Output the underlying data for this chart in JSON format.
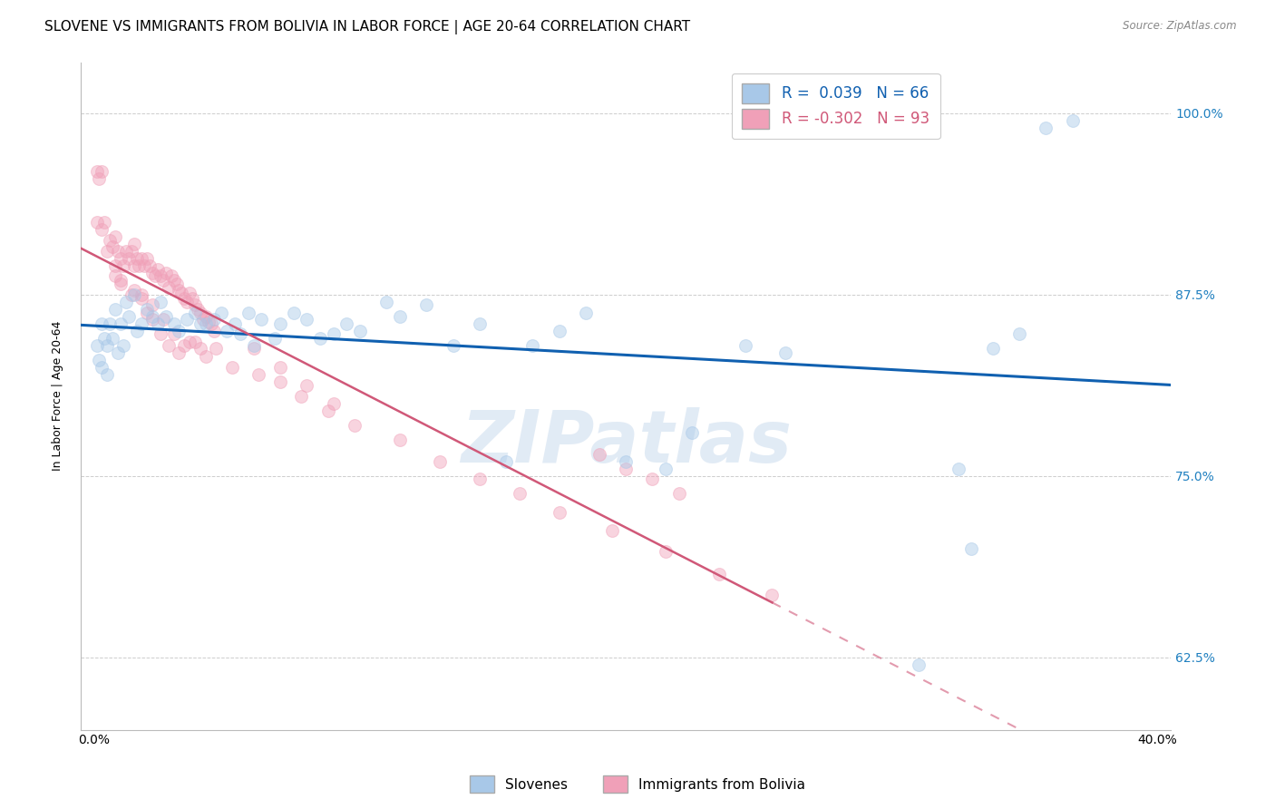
{
  "title": "SLOVENE VS IMMIGRANTS FROM BOLIVIA IN LABOR FORCE | AGE 20-64 CORRELATION CHART",
  "source": "Source: ZipAtlas.com",
  "ylabel": "In Labor Force | Age 20-64",
  "xlim": [
    -0.005,
    0.405
  ],
  "ylim": [
    0.575,
    1.035
  ],
  "yticks": [
    0.625,
    0.75,
    0.875,
    1.0
  ],
  "ytick_labels": [
    "62.5%",
    "75.0%",
    "87.5%",
    "100.0%"
  ],
  "xticks": [
    0.0,
    0.05,
    0.1,
    0.15,
    0.2,
    0.25,
    0.3,
    0.35,
    0.4
  ],
  "xtick_labels": [
    "0.0%",
    "",
    "",
    "",
    "",
    "",
    "",
    "",
    "40.0%"
  ],
  "legend_line1": "R =  0.039   N = 66",
  "legend_line2": "R = -0.302   N = 93",
  "legend_label_blue": "Slovenes",
  "legend_label_pink": "Immigrants from Bolivia",
  "blue_color": "#a8c8e8",
  "pink_color": "#f0a0b8",
  "blue_line_color": "#1060b0",
  "pink_line_color": "#d05878",
  "watermark": "ZIPatlas",
  "title_fontsize": 11,
  "axis_fontsize": 9,
  "tick_fontsize": 9,
  "scatter_size": 100,
  "scatter_alpha": 0.45,
  "blue_scatter_x": [
    0.358,
    0.368,
    0.003,
    0.001,
    0.002,
    0.003,
    0.004,
    0.005,
    0.005,
    0.006,
    0.007,
    0.008,
    0.009,
    0.01,
    0.011,
    0.012,
    0.013,
    0.015,
    0.016,
    0.018,
    0.02,
    0.022,
    0.024,
    0.025,
    0.027,
    0.03,
    0.032,
    0.035,
    0.038,
    0.04,
    0.042,
    0.045,
    0.048,
    0.05,
    0.053,
    0.055,
    0.058,
    0.06,
    0.063,
    0.068,
    0.07,
    0.075,
    0.08,
    0.085,
    0.09,
    0.095,
    0.1,
    0.11,
    0.115,
    0.125,
    0.135,
    0.145,
    0.155,
    0.165,
    0.175,
    0.185,
    0.2,
    0.215,
    0.225,
    0.245,
    0.26,
    0.31,
    0.325,
    0.33,
    0.338,
    0.348
  ],
  "blue_scatter_y": [
    0.99,
    0.995,
    0.825,
    0.84,
    0.83,
    0.855,
    0.845,
    0.84,
    0.82,
    0.855,
    0.845,
    0.865,
    0.835,
    0.855,
    0.84,
    0.87,
    0.86,
    0.875,
    0.85,
    0.855,
    0.865,
    0.86,
    0.855,
    0.87,
    0.86,
    0.855,
    0.85,
    0.858,
    0.862,
    0.855,
    0.855,
    0.858,
    0.862,
    0.85,
    0.855,
    0.848,
    0.862,
    0.84,
    0.858,
    0.845,
    0.855,
    0.862,
    0.858,
    0.845,
    0.848,
    0.855,
    0.85,
    0.87,
    0.86,
    0.868,
    0.84,
    0.855,
    0.76,
    0.84,
    0.85,
    0.862,
    0.76,
    0.755,
    0.78,
    0.84,
    0.835,
    0.62,
    0.755,
    0.7,
    0.838,
    0.848
  ],
  "pink_scatter_x": [
    0.001,
    0.001,
    0.002,
    0.003,
    0.003,
    0.004,
    0.005,
    0.006,
    0.007,
    0.008,
    0.009,
    0.01,
    0.011,
    0.012,
    0.013,
    0.014,
    0.015,
    0.015,
    0.016,
    0.017,
    0.018,
    0.019,
    0.02,
    0.021,
    0.022,
    0.023,
    0.024,
    0.025,
    0.026,
    0.027,
    0.028,
    0.029,
    0.03,
    0.031,
    0.032,
    0.033,
    0.034,
    0.035,
    0.036,
    0.037,
    0.038,
    0.039,
    0.04,
    0.041,
    0.042,
    0.043,
    0.044,
    0.045,
    0.008,
    0.01,
    0.015,
    0.018,
    0.02,
    0.022,
    0.025,
    0.028,
    0.032,
    0.036,
    0.04,
    0.008,
    0.01,
    0.014,
    0.018,
    0.022,
    0.026,
    0.03,
    0.034,
    0.038,
    0.042,
    0.046,
    0.052,
    0.062,
    0.07,
    0.078,
    0.088,
    0.098,
    0.115,
    0.13,
    0.145,
    0.16,
    0.175,
    0.195,
    0.215,
    0.235,
    0.255,
    0.19,
    0.2,
    0.21,
    0.22,
    0.06,
    0.07,
    0.08,
    0.09
  ],
  "pink_scatter_y": [
    0.96,
    0.925,
    0.955,
    0.96,
    0.92,
    0.925,
    0.905,
    0.912,
    0.908,
    0.915,
    0.905,
    0.9,
    0.895,
    0.905,
    0.9,
    0.905,
    0.895,
    0.91,
    0.9,
    0.895,
    0.9,
    0.895,
    0.9,
    0.895,
    0.89,
    0.888,
    0.892,
    0.888,
    0.885,
    0.89,
    0.88,
    0.888,
    0.885,
    0.882,
    0.878,
    0.876,
    0.872,
    0.87,
    0.876,
    0.872,
    0.868,
    0.865,
    0.862,
    0.858,
    0.86,
    0.856,
    0.855,
    0.85,
    0.888,
    0.882,
    0.878,
    0.872,
    0.862,
    0.858,
    0.848,
    0.84,
    0.835,
    0.842,
    0.838,
    0.895,
    0.885,
    0.875,
    0.875,
    0.868,
    0.858,
    0.848,
    0.84,
    0.842,
    0.832,
    0.838,
    0.825,
    0.82,
    0.815,
    0.805,
    0.795,
    0.785,
    0.775,
    0.76,
    0.748,
    0.738,
    0.725,
    0.712,
    0.698,
    0.682,
    0.668,
    0.765,
    0.755,
    0.748,
    0.738,
    0.838,
    0.825,
    0.812,
    0.8
  ]
}
